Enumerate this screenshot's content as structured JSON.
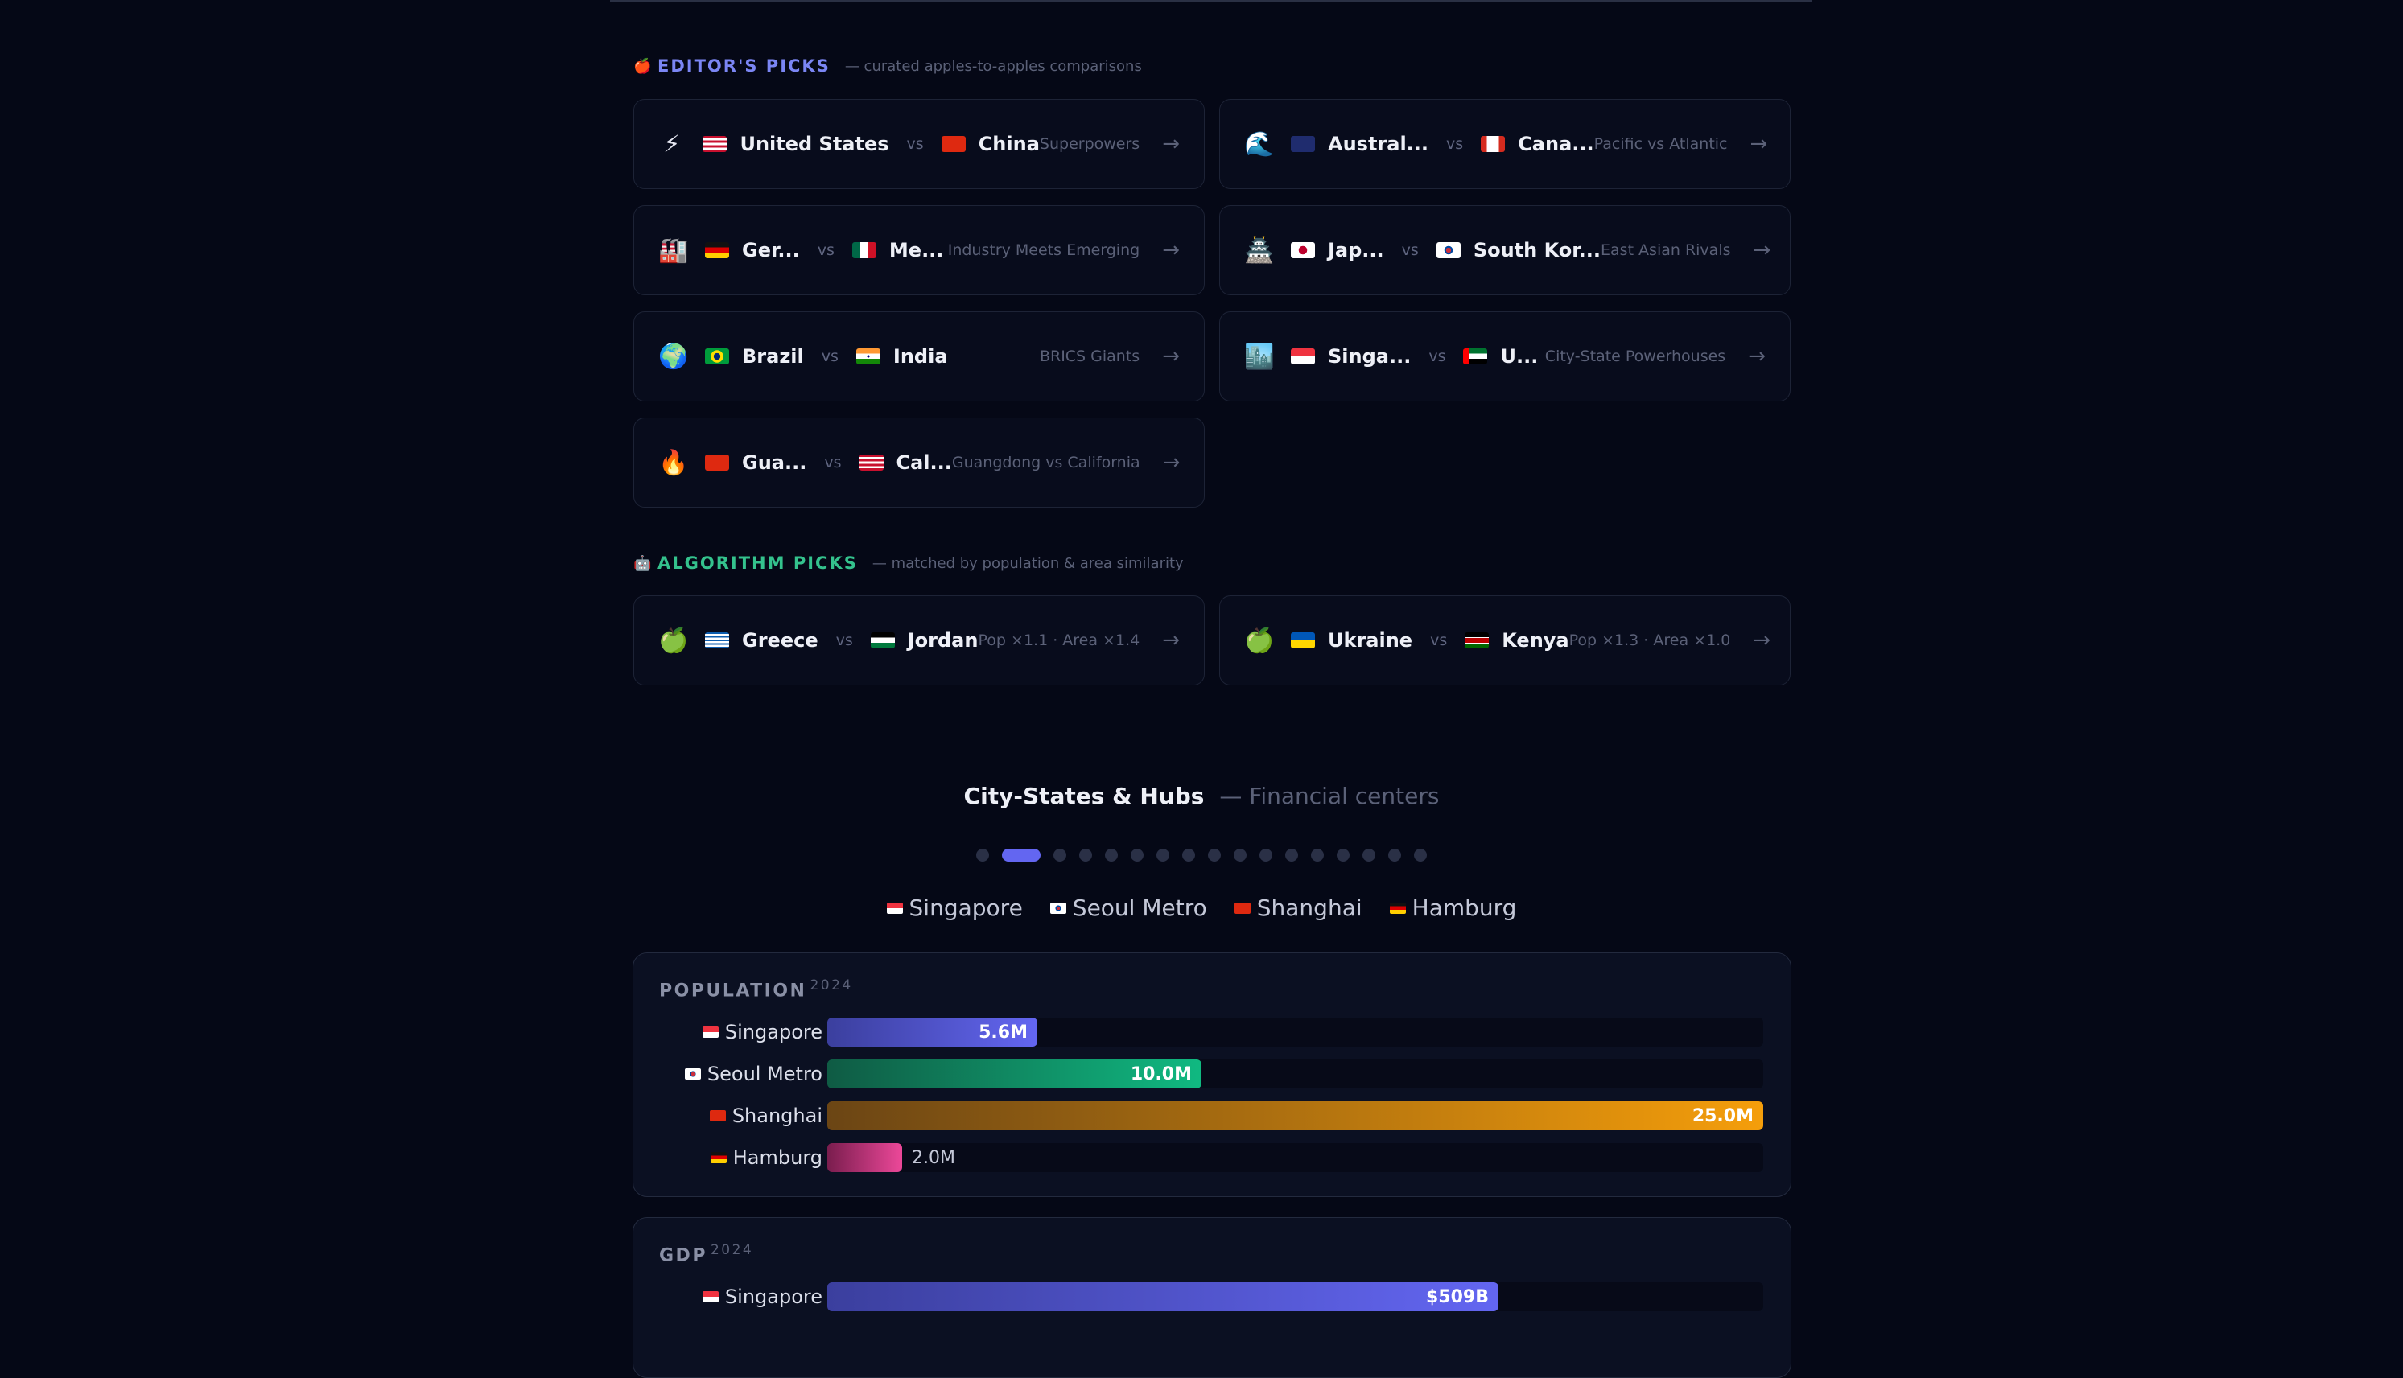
{
  "editors": {
    "emoji": "🍎",
    "title": "EDITOR'S PICKS",
    "subtitle": "— curated apples-to-apples comparisons",
    "cards": [
      {
        "emoji": "⚡",
        "a": "United States",
        "af": "us",
        "b": "China",
        "bf": "cn",
        "tag": "Superpowers"
      },
      {
        "emoji": "🌊",
        "a": "Austral...",
        "af": "au",
        "b": "Cana...",
        "bf": "ca",
        "tag": "Pacific vs Atlantic"
      },
      {
        "emoji": "🏭",
        "a": "Ger...",
        "af": "de",
        "b": "Me...",
        "bf": "mx",
        "tag": "Industry Meets Emerging"
      },
      {
        "emoji": "🏯",
        "a": "Jap...",
        "af": "jp",
        "b": "South Kor...",
        "bf": "kr",
        "tag": "East Asian Rivals"
      },
      {
        "emoji": "🌍",
        "a": "Brazil",
        "af": "br",
        "b": "India",
        "bf": "in",
        "tag": "BRICS Giants"
      },
      {
        "emoji": "🏙️",
        "a": "Singa...",
        "af": "sg",
        "b": "U...",
        "bf": "ae",
        "tag": "City-State Powerhouses"
      },
      {
        "emoji": "🔥",
        "a": "Gua...",
        "af": "cn",
        "b": "Cal...",
        "bf": "us",
        "tag": "Guangdong vs California"
      }
    ]
  },
  "algorithm": {
    "emoji": "🤖",
    "title": "ALGORITHM PICKS",
    "subtitle": "— matched by population & area similarity",
    "cards": [
      {
        "emoji": "🍏",
        "a": "Greece",
        "af": "gr",
        "b": "Jordan",
        "bf": "jo",
        "tag": "Pop ×1.1 · Area ×1.4"
      },
      {
        "emoji": "🍏",
        "a": "Ukraine",
        "af": "ua",
        "b": "Kenya",
        "bf": "ke",
        "tag": "Pop ×1.3 · Area ×1.0"
      }
    ]
  },
  "vs_label": "vs",
  "arrow_glyph": "→",
  "carousel": {
    "title": "City-States & Hubs",
    "subtitle": "— Financial centers",
    "dot_count": 17,
    "active_dot": 1
  },
  "legend": [
    {
      "flag": "sg",
      "name": "Singapore"
    },
    {
      "flag": "kr",
      "name": "Seoul Metro"
    },
    {
      "flag": "cn",
      "name": "Shanghai"
    },
    {
      "flag": "de",
      "name": "Hamburg"
    }
  ],
  "population": {
    "title": "POPULATION",
    "year": "2024",
    "rows": [
      {
        "flag": "sg",
        "name": "Singapore",
        "value": 5.6,
        "label": "5.6M",
        "from": "#3b3f9e",
        "to": "#6366f1"
      },
      {
        "flag": "kr",
        "name": "Seoul Metro",
        "value": 10.0,
        "label": "10.0M",
        "from": "#0f5b44",
        "to": "#10b981"
      },
      {
        "flag": "cn",
        "name": "Shanghai",
        "value": 25.0,
        "label": "25.0M",
        "from": "#6b4514",
        "to": "#f59e0b"
      },
      {
        "flag": "de",
        "name": "Hamburg",
        "value": 2.0,
        "label": "2.0M",
        "from": "#7a1d4e",
        "to": "#ec4899"
      }
    ],
    "max": 25.0
  },
  "gdp": {
    "title": "GDP",
    "year": "2024",
    "rows": [
      {
        "flag": "sg",
        "name": "Singapore",
        "value": 509,
        "label": "$509B",
        "from": "#3b3f9e",
        "to": "#6366f1"
      }
    ],
    "max": 710
  }
}
